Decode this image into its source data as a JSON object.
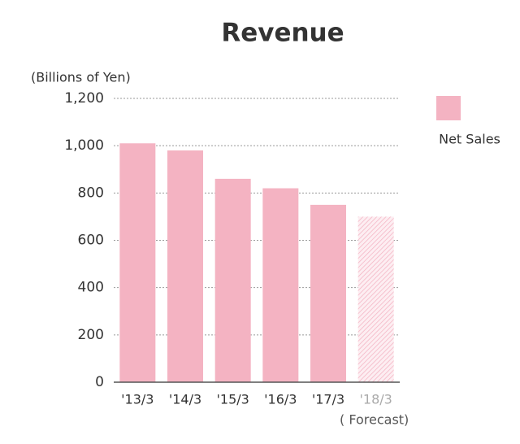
{
  "chart_data": {
    "type": "bar",
    "title": "Revenue",
    "y_label": "(Billions of Yen)",
    "categories": [
      "'13/3",
      "'14/3",
      "'15/3",
      "'16/3",
      "'17/3",
      "'18/3"
    ],
    "series": [
      {
        "name": "Net Sales",
        "color": "#f4b3c2",
        "values": [
          1010,
          980,
          860,
          820,
          750,
          700
        ]
      }
    ],
    "forecast": {
      "index": 5,
      "label": "( Forecast)",
      "color": "#fadbe3"
    },
    "ylim": [
      0,
      1200
    ],
    "yticks": [
      0,
      200,
      400,
      600,
      800,
      {
        "value": 1000,
        "label": "1,000"
      },
      {
        "value": 1200,
        "label": "1,200"
      }
    ],
    "grid": true,
    "legend": "right"
  }
}
